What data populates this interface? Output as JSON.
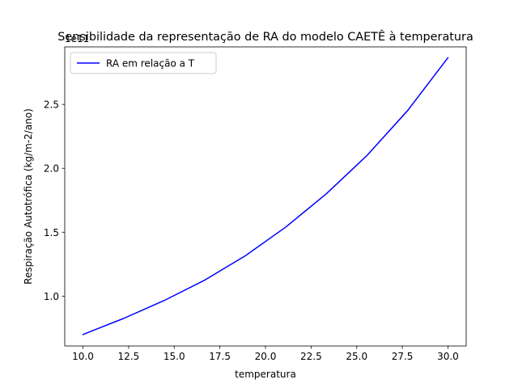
{
  "chart_data": {
    "type": "line",
    "title": "Sensibilidade da representação de RA do modelo CAETÊ à temperatura",
    "xlabel": "temperatura",
    "ylabel": "Respiração Autotrófica (kg/m-2/ano)",
    "offset_text": "1e11",
    "xlim": [
      9.0,
      31.0
    ],
    "ylim": [
      0.61,
      2.95
    ],
    "xticks": [
      10.0,
      12.5,
      15.0,
      17.5,
      20.0,
      22.5,
      25.0,
      27.5,
      30.0
    ],
    "xtick_labels": [
      "10.0",
      "12.5",
      "15.0",
      "17.5",
      "20.0",
      "22.5",
      "25.0",
      "27.5",
      "30.0"
    ],
    "yticks": [
      1.0,
      1.5,
      2.0,
      2.5
    ],
    "ytick_labels": [
      "1.0",
      "1.5",
      "2.0",
      "2.5"
    ],
    "legend_position": "top-left",
    "grid": false,
    "series": [
      {
        "name": "RA em relação a T",
        "color": "#0000ff",
        "x": [
          10.0,
          12.22,
          14.44,
          16.67,
          18.89,
          21.11,
          23.33,
          25.56,
          27.78,
          30.0
        ],
        "y": [
          0.7,
          0.825,
          0.965,
          1.125,
          1.315,
          1.54,
          1.8,
          2.1,
          2.45,
          2.865
        ]
      }
    ]
  }
}
